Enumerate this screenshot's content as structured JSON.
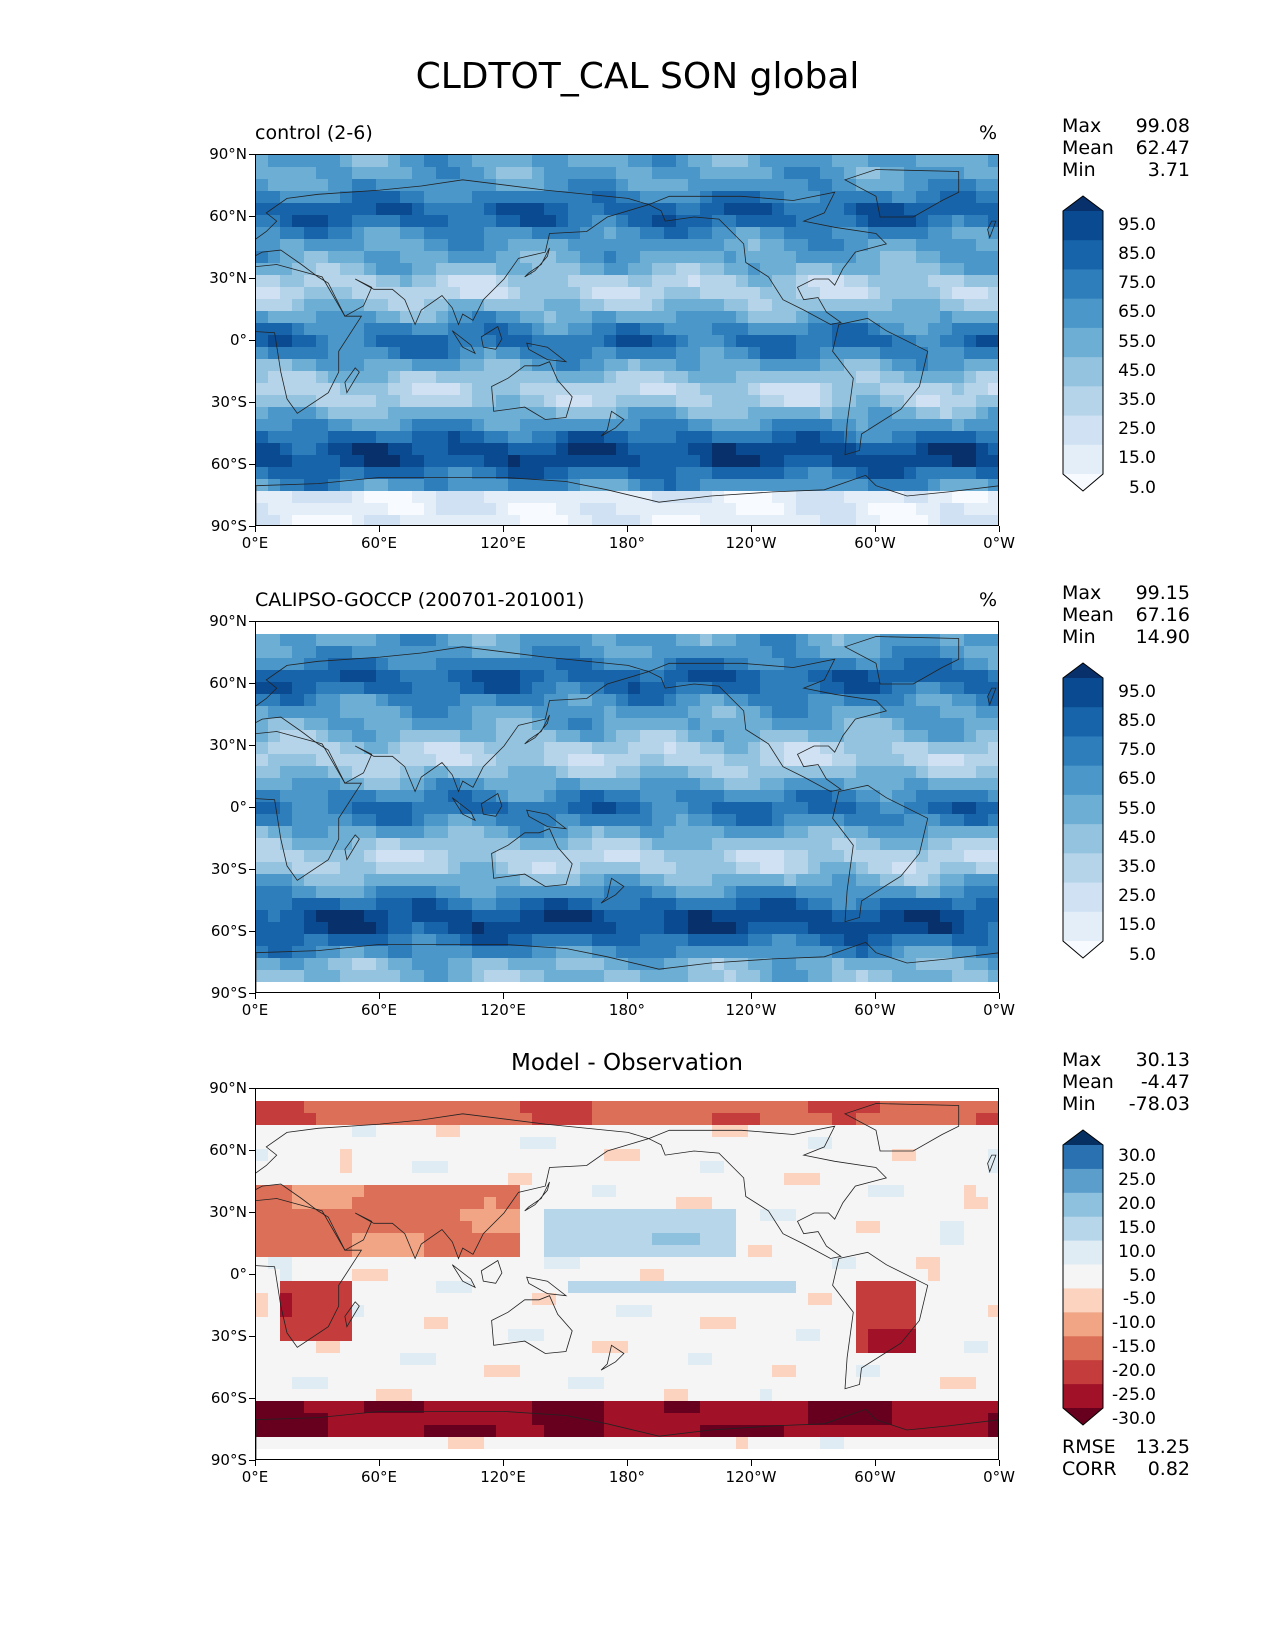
{
  "title": "CLDTOT_CAL SON global",
  "lat_labels": [
    "90°N",
    "60°N",
    "30°N",
    "0°",
    "30°S",
    "60°S",
    "90°S"
  ],
  "lon_labels": [
    "0°E",
    "60°E",
    "120°E",
    "180°",
    "120°W",
    "60°W",
    "0°W"
  ],
  "stat_labels": {
    "max": "Max",
    "mean": "Mean",
    "min": "Min",
    "rmse": "RMSE",
    "corr": "CORR"
  },
  "panels": [
    {
      "title": "control (2-6)",
      "units": "%",
      "max": "99.08",
      "mean": "62.47",
      "min": "3.71",
      "colorbar_levels": [
        "95.0",
        "85.0",
        "75.0",
        "65.0",
        "55.0",
        "45.0",
        "35.0",
        "25.0",
        "15.0",
        "5.0"
      ],
      "colormap": "blues"
    },
    {
      "title": "CALIPSO-GOCCP (200701-201001)",
      "units": "%",
      "max": "99.15",
      "mean": "67.16",
      "min": "14.90",
      "colorbar_levels": [
        "95.0",
        "85.0",
        "75.0",
        "65.0",
        "55.0",
        "45.0",
        "35.0",
        "25.0",
        "15.0",
        "5.0"
      ],
      "colormap": "blues"
    },
    {
      "title": "Model - Observation",
      "units": "",
      "max": "30.13",
      "mean": "-4.47",
      "min": "-78.03",
      "colorbar_levels": [
        "30.0",
        "25.0",
        "20.0",
        "15.0",
        "10.0",
        "5.0",
        "-5.0",
        "-10.0",
        "-15.0",
        "-20.0",
        "-25.0",
        "-30.0"
      ],
      "colormap": "diverging",
      "rmse": "13.25",
      "corr": "0.82"
    }
  ],
  "colors": {
    "blues": [
      "#f7fbff",
      "#e3eef9",
      "#cfe1f2",
      "#b5d4e9",
      "#93c3df",
      "#6daed5",
      "#4b97c9",
      "#2f7ebc",
      "#1864aa",
      "#0a4a90",
      "#08306b"
    ],
    "diverging": [
      "#67001f",
      "#a11228",
      "#c43c3c",
      "#dc6f58",
      "#f1a585",
      "#fbd3bf",
      "#f5f5f5",
      "#e0ecf4",
      "#b8d6e9",
      "#8ec1dd",
      "#5c9ecb",
      "#2a71b2",
      "#053061"
    ]
  }
}
